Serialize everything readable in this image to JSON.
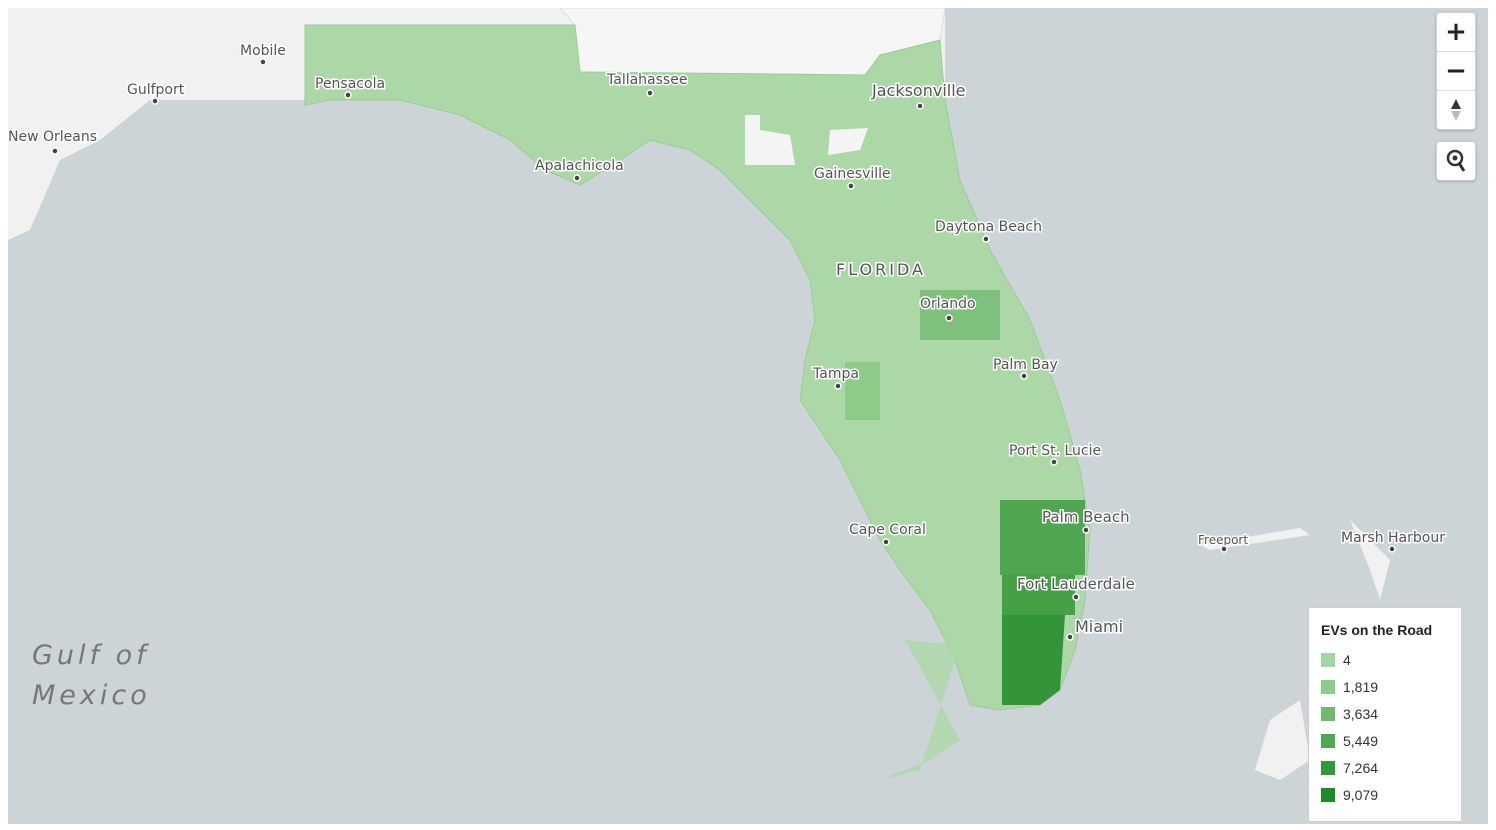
{
  "places": {
    "mobile": "Mobile",
    "gulfport": "Gulfport",
    "new_orleans": "New Orleans",
    "pensacola": "Pensacola",
    "tallahassee": "Tallahassee",
    "jacksonville": "Jacksonville",
    "apalachicola": "Apalachicola",
    "gainesville": "Gainesville",
    "daytona_beach": "Daytona Beach",
    "florida": "FLORIDA",
    "orlando": "Orlando",
    "palm_bay": "Palm Bay",
    "tampa": "Tampa",
    "port_st_lucie": "Port St. Lucie",
    "palm_beach": "Palm Beach",
    "cape_coral": "Cape Coral",
    "fort_lauderdale": "Fort Lauderdale",
    "miami": "Miami",
    "freeport": "Freeport",
    "marsh_harbour": "Marsh Harbour",
    "gulf_line1": "Gulf of",
    "gulf_line2": "Mexico"
  },
  "controls": {
    "zoom_in": "+",
    "zoom_out": "−"
  },
  "legend": {
    "title": "EVs on the Road",
    "items": [
      {
        "label": "4",
        "color": "#a6d6a2"
      },
      {
        "label": "1,819",
        "color": "#8ccb88"
      },
      {
        "label": "3,634",
        "color": "#70ba6e"
      },
      {
        "label": "5,449",
        "color": "#52a852"
      },
      {
        "label": "7,264",
        "color": "#35963a"
      },
      {
        "label": "9,079",
        "color": "#1f8a2a"
      }
    ]
  }
}
